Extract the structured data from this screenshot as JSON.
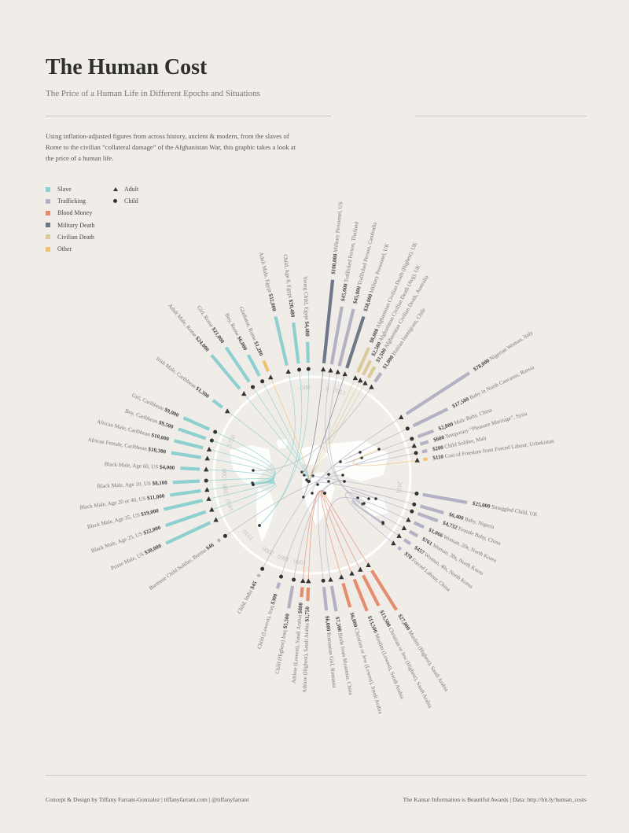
{
  "header": {
    "title": "The Human Cost",
    "subtitle": "The Price of a Human Life in Different Epochs and Situations",
    "intro": "Using inflation-adjusted figures from across history, ancient & modern, from the slaves of Rome to the civilian “collateral damage” of the Afghanistan War, this graphic takes a look at the price of a human life."
  },
  "legend": {
    "categories": [
      {
        "label": "Slave",
        "color": "#8ecfcf"
      },
      {
        "label": "Trafficking",
        "color": "#b3b1c4"
      },
      {
        "label": "Blood Money",
        "color": "#e58e6f"
      },
      {
        "label": "Military Death",
        "color": "#6e7889"
      },
      {
        "label": "Civilian Death",
        "color": "#dcc99a"
      },
      {
        "label": "Other",
        "color": "#f1c272"
      }
    ],
    "markers": [
      {
        "label": "Adult",
        "icon": "triangle"
      },
      {
        "label": "Child",
        "icon": "dot"
      }
    ]
  },
  "footer": {
    "credit": "Concept & Design by Tiffany Farrant-Gonzalez  |  tiffanyfarrant.com  |  @tiffanyfarrant",
    "source": "The Kantar Information is Beautiful Awards  |  Data: http://bit.ly/human_costs"
  },
  "chart_data": {
    "type": "radial-bar",
    "epochs": [
      "-500",
      "0",
      "1000",
      "1500",
      "1750",
      "1850",
      "1860",
      "1910",
      "1990",
      "2000",
      "2011",
      "2013"
    ],
    "series": [
      {
        "label": "Adult Male, Egypt",
        "value": 32000,
        "value_label": "$32,000",
        "category": "Slave",
        "marker": "Adult"
      },
      {
        "label": "Child, Age 8, Egypt",
        "value": 20480,
        "value_label": "$20,480",
        "category": "Slave",
        "marker": "Child"
      },
      {
        "label": "Young Child, Egypt",
        "value": 4480,
        "value_label": "$4,480",
        "category": "Slave",
        "marker": "Child"
      },
      {
        "label": "Military Personnel, US",
        "value": 100000,
        "value_label": "$100,000",
        "category": "Military Death",
        "marker": "Adult"
      },
      {
        "label": "Trafficked Person, Thailand",
        "value": 45000,
        "value_label": "$45,000",
        "category": "Trafficking",
        "marker": "Adult"
      },
      {
        "label": "Trafficked Person, Cambodia",
        "value": 45000,
        "value_label": "$45,000",
        "category": "Trafficking",
        "marker": "Adult"
      },
      {
        "label": "Military Personnel, UK",
        "value": 38000,
        "value_label": "$38,000",
        "category": "Military Death",
        "marker": "Adult"
      },
      {
        "label": "Afghanistan Civilian Death (Highest), UK",
        "value": 8000,
        "value_label": "$8,000",
        "category": "Civilian Death",
        "marker": "Adult"
      },
      {
        "label": "Afghanistan Civilian Death (Avg), UK",
        "value": 2500,
        "value_label": "$2,500",
        "category": "Civilian Death",
        "marker": "Adult"
      },
      {
        "label": "Afghanistan Civilian Death, Australia",
        "value": 1500,
        "value_label": "$1,500",
        "category": "Civilian Death",
        "marker": "Adult"
      },
      {
        "label": "Haitian Immigrant, Chile",
        "value": 1000,
        "value_label": "$1,000",
        "category": "Trafficking",
        "marker": "Adult"
      },
      {
        "label": "Nigerian Woman, Italy",
        "value": 78000,
        "value_label": "$78,000",
        "category": "Trafficking",
        "marker": "Adult"
      },
      {
        "label": "Baby in North Caucasus, Russia",
        "value": 17500,
        "value_label": "$17,500",
        "category": "Trafficking",
        "marker": "Child"
      },
      {
        "label": "Male Baby, China",
        "value": 2800,
        "value_label": "$2,800",
        "category": "Trafficking",
        "marker": "Child"
      },
      {
        "label": "Temporary “Pleasure Marriage”, Syria",
        "value": 600,
        "value_label": "$600",
        "category": "Trafficking",
        "marker": "Adult"
      },
      {
        "label": "Child Soldier, Mali",
        "value": 200,
        "value_label": "$200",
        "category": "Trafficking",
        "marker": "Child"
      },
      {
        "label": "Cost of Freedom from Forced Labour, Uzbekistan",
        "value": 110,
        "value_label": "$110",
        "category": "Other",
        "marker": "Adult"
      },
      {
        "label": "Smuggled Child, UK",
        "value": 25000,
        "value_label": "$25,000",
        "category": "Trafficking",
        "marker": "Child"
      },
      {
        "label": "Baby, Nigeria",
        "value": 6400,
        "value_label": "$6,400",
        "category": "Trafficking",
        "marker": "Child"
      },
      {
        "label": "Female Baby, China",
        "value": 4732,
        "value_label": "$4,732",
        "category": "Trafficking",
        "marker": "Child"
      },
      {
        "label": "Woman, 20s, North Korea",
        "value": 1066,
        "value_label": "$1,066",
        "category": "Trafficking",
        "marker": "Adult"
      },
      {
        "label": "Woman, 30s, North Korea",
        "value": 761,
        "value_label": "$761",
        "category": "Trafficking",
        "marker": "Adult"
      },
      {
        "label": "Woman, 40s, North Korea",
        "value": 457,
        "value_label": "$457",
        "category": "Trafficking",
        "marker": "Adult"
      },
      {
        "label": "Forced Labour, China",
        "value": 78,
        "value_label": "$78",
        "category": "Trafficking",
        "marker": "Adult"
      },
      {
        "label": "Muslim (Highest), Saudi Arabia",
        "value": 27000,
        "value_label": "$27,000",
        "category": "Blood Money",
        "marker": "Adult"
      },
      {
        "label": "Christian or Jew (Highest), Saudi Arabia",
        "value": 13500,
        "value_label": "$13,500",
        "category": "Blood Money",
        "marker": "Adult"
      },
      {
        "label": "Muslim (Lowest), Saudi Arabia",
        "value": 13500,
        "value_label": "$13,500",
        "category": "Blood Money",
        "marker": "Adult"
      },
      {
        "label": "Christian or Jew (Lowest), Saudi Arabia",
        "value": 6800,
        "value_label": "$6,800",
        "category": "Blood Money",
        "marker": "Adult"
      },
      {
        "label": "Bride from Myanmar, China",
        "value": 7300,
        "value_label": "$7,300",
        "category": "Trafficking",
        "marker": "Adult"
      },
      {
        "label": "Romanian Girl, Romania",
        "value": 6000,
        "value_label": "$6,000",
        "category": "Trafficking",
        "marker": "Child"
      },
      {
        "label": "Athlete (Highest), Saudi Arabia",
        "value": 1750,
        "value_label": "$1,750",
        "category": "Blood Money",
        "marker": "Adult"
      },
      {
        "label": "Athlete (Lowest), Saudi Arabia",
        "value": 880,
        "value_label": "$880",
        "category": "Blood Money",
        "marker": "Adult"
      },
      {
        "label": "Child (Highest) Iraq",
        "value": 5500,
        "value_label": "$5,500",
        "category": "Trafficking",
        "marker": "Child"
      },
      {
        "label": "Child (Lowest), Iraq",
        "value": 300,
        "value_label": "$300",
        "category": "Trafficking",
        "marker": "Child"
      },
      {
        "label": "Child, India",
        "value": 45,
        "value_label": "$45",
        "category": "Trafficking",
        "marker": "Child"
      },
      {
        "label": "Burmese Child Soldier, Burma",
        "value": 46,
        "value_label": "$46",
        "category": "Trafficking",
        "marker": "Child"
      },
      {
        "label": "Prime Male, US",
        "value": 30000,
        "value_label": "$30,000",
        "category": "Slave",
        "marker": "Adult"
      },
      {
        "label": "Black Male, Age 25, US",
        "value": 22000,
        "value_label": "$22,000",
        "category": "Slave",
        "marker": "Adult"
      },
      {
        "label": "Black Male, Age 35, US",
        "value": 19000,
        "value_label": "$19,000",
        "category": "Slave",
        "marker": "Adult"
      },
      {
        "label": "Black Male, Age 20 or 40, US",
        "value": 11000,
        "value_label": "$11,000",
        "category": "Slave",
        "marker": "Adult"
      },
      {
        "label": "Black Male, Age 10, US",
        "value": 8100,
        "value_label": "$8,100",
        "category": "Slave",
        "marker": "Child"
      },
      {
        "label": "Black Male, Age 60, US",
        "value": 4000,
        "value_label": "$4,000",
        "category": "Slave",
        "marker": "Adult"
      },
      {
        "label": "African Female, Caribbean",
        "value": 10300,
        "value_label": "$10,300",
        "category": "Slave",
        "marker": "Adult"
      },
      {
        "label": "African Male, Caribbean",
        "value": 10000,
        "value_label": "$10,000",
        "category": "Slave",
        "marker": "Adult"
      },
      {
        "label": "Boy, Caribbean",
        "value": 9500,
        "value_label": "$9,500",
        "category": "Slave",
        "marker": "Child"
      },
      {
        "label": "Girl, Caribbean",
        "value": 9000,
        "value_label": "$9,000",
        "category": "Slave",
        "marker": "Child"
      },
      {
        "label": "Irish Male, Caribbean",
        "value": 1300,
        "value_label": "$1,300",
        "category": "Slave",
        "marker": "Adult"
      },
      {
        "label": "Adult Male, Rome",
        "value": 24000,
        "value_label": "$24,000",
        "category": "Slave",
        "marker": "Adult"
      },
      {
        "label": "Girl, Rome",
        "value": 21000,
        "value_label": "$21,000",
        "category": "Slave",
        "marker": "Child"
      },
      {
        "label": "Boy, Rome",
        "value": 6000,
        "value_label": "$6,000",
        "category": "Slave",
        "marker": "Child"
      },
      {
        "label": "Gladiator, Rome",
        "value": 1280,
        "value_label": "$1,280",
        "category": "Other",
        "marker": "Adult"
      }
    ]
  }
}
